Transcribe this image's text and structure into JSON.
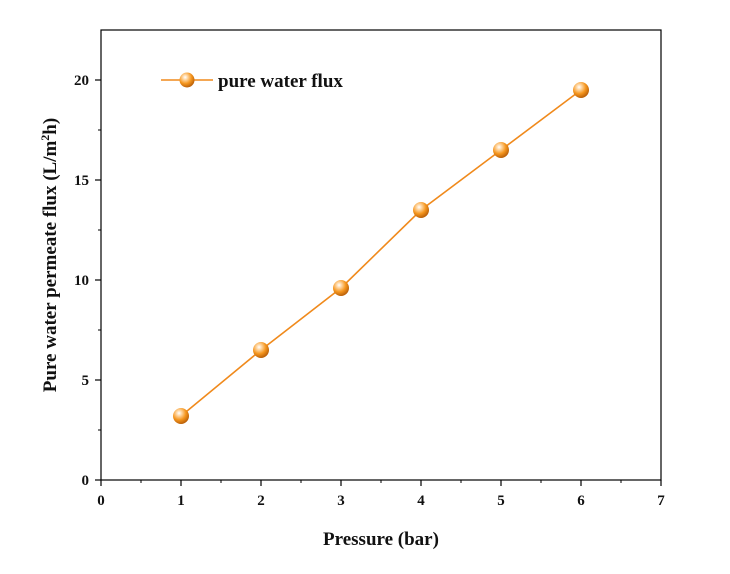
{
  "chart_data": {
    "type": "line",
    "title": "",
    "xlabel": "Pressure (bar)",
    "ylabel_main": "Pure water permeate flux (L/m",
    "ylabel_sup": "2",
    "ylabel_tail": "h)",
    "xlim": [
      0,
      7
    ],
    "ylim": [
      0,
      22.5
    ],
    "xticks": [
      "0",
      "1",
      "2",
      "3",
      "4",
      "5",
      "6",
      "7"
    ],
    "yticks": [
      "0",
      "5",
      "10",
      "15",
      "20"
    ],
    "grid": false,
    "legend_position": "top-left",
    "series": [
      {
        "name": "pure water flux",
        "color": "#f08a1c",
        "marker": "sphere",
        "x": [
          1,
          2,
          3,
          4,
          5,
          6
        ],
        "y": [
          3.2,
          6.5,
          9.6,
          13.5,
          16.5,
          19.5
        ]
      }
    ]
  }
}
